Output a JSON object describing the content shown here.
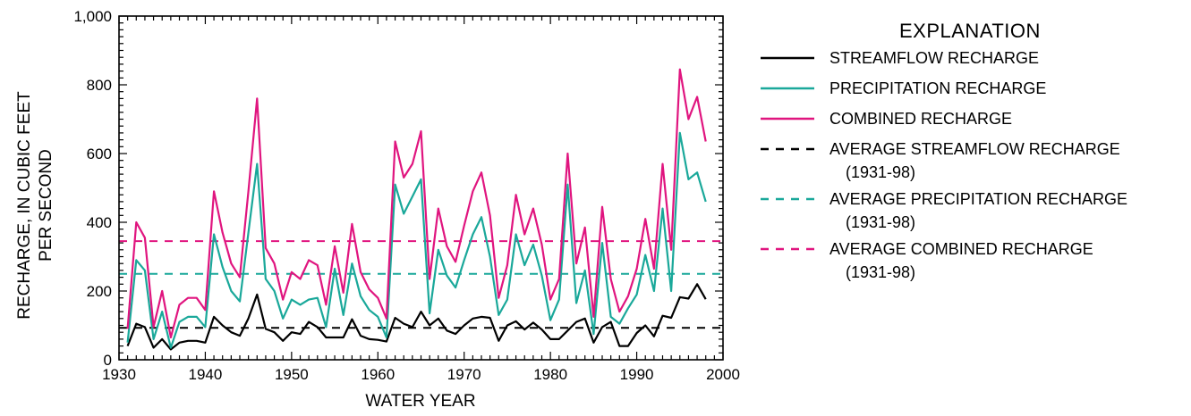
{
  "chart_data": {
    "type": "line",
    "xlabel": "WATER YEAR",
    "ylabel": [
      "RECHARGE, IN CUBIC FEET",
      "PER SECOND"
    ],
    "xlim": [
      1930,
      2000
    ],
    "ylim": [
      0,
      1000
    ],
    "x_ticks": [
      1930,
      1940,
      1950,
      1960,
      1970,
      1980,
      1990,
      2000
    ],
    "y_ticks": [
      0,
      200,
      400,
      600,
      800,
      1000
    ],
    "y_tick_labels": [
      "0",
      "200",
      "400",
      "600",
      "800",
      "1,000"
    ],
    "x": [
      1931,
      1932,
      1933,
      1934,
      1935,
      1936,
      1937,
      1938,
      1939,
      1940,
      1941,
      1942,
      1943,
      1944,
      1945,
      1946,
      1947,
      1948,
      1949,
      1950,
      1951,
      1952,
      1953,
      1954,
      1955,
      1956,
      1957,
      1958,
      1959,
      1960,
      1961,
      1962,
      1963,
      1964,
      1965,
      1966,
      1967,
      1968,
      1969,
      1970,
      1971,
      1972,
      1973,
      1974,
      1975,
      1976,
      1977,
      1978,
      1979,
      1980,
      1981,
      1982,
      1983,
      1984,
      1985,
      1986,
      1987,
      1988,
      1989,
      1990,
      1991,
      1992,
      1993,
      1994,
      1995,
      1996,
      1997,
      1998
    ],
    "series": [
      {
        "name": "STREAMFLOW RECHARGE",
        "color": "#000000",
        "dash": false,
        "values": [
          40,
          105,
          95,
          35,
          60,
          30,
          50,
          55,
          55,
          50,
          125,
          100,
          80,
          70,
          120,
          190,
          90,
          80,
          55,
          80,
          75,
          110,
          95,
          65,
          65,
          65,
          118,
          70,
          60,
          58,
          53,
          122,
          105,
          95,
          140,
          100,
          120,
          85,
          75,
          100,
          120,
          125,
          122,
          55,
          100,
          112,
          88,
          108,
          88,
          60,
          60,
          85,
          110,
          120,
          50,
          95,
          110,
          40,
          40,
          78,
          100,
          68,
          128,
          122,
          182,
          178,
          220,
          176
        ]
      },
      {
        "name": "PRECIPITATION RECHARGE",
        "color": "#1aa89a",
        "dash": false,
        "values": [
          50,
          290,
          260,
          60,
          140,
          35,
          110,
          125,
          125,
          95,
          365,
          270,
          200,
          170,
          370,
          570,
          235,
          200,
          120,
          175,
          160,
          175,
          180,
          95,
          265,
          130,
          280,
          185,
          145,
          125,
          65,
          510,
          425,
          475,
          525,
          135,
          320,
          245,
          210,
          290,
          365,
          415,
          300,
          130,
          175,
          365,
          275,
          335,
          245,
          115,
          175,
          510,
          165,
          260,
          75,
          340,
          125,
          105,
          150,
          190,
          305,
          200,
          440,
          200,
          660,
          525,
          545,
          460
        ]
      },
      {
        "name": "COMBINED RECHARGE",
        "color": "#e0157f",
        "dash": false,
        "values": [
          90,
          400,
          355,
          95,
          200,
          65,
          160,
          180,
          180,
          145,
          490,
          370,
          280,
          240,
          490,
          760,
          325,
          280,
          175,
          255,
          235,
          290,
          275,
          160,
          330,
          195,
          395,
          255,
          205,
          180,
          120,
          635,
          530,
          570,
          665,
          235,
          440,
          330,
          285,
          390,
          490,
          545,
          420,
          180,
          275,
          480,
          365,
          440,
          335,
          175,
          235,
          600,
          280,
          385,
          125,
          445,
          235,
          140,
          185,
          265,
          410,
          265,
          570,
          320,
          845,
          700,
          765,
          635
        ]
      },
      {
        "name": "AVERAGE STREAMFLOW RECHARGE",
        "period": "(1931-98)",
        "color": "#000000",
        "dash": true,
        "constant": 93
      },
      {
        "name": "AVERAGE PRECIPITATION RECHARGE",
        "period": "(1931-98)",
        "color": "#1aa89a",
        "dash": true,
        "constant": 250
      },
      {
        "name": "AVERAGE COMBINED RECHARGE",
        "period": "(1931-98)",
        "color": "#e0157f",
        "dash": true,
        "constant": 345
      }
    ],
    "legend_title": "EXPLANATION",
    "legend_position": "right",
    "grid": false
  }
}
